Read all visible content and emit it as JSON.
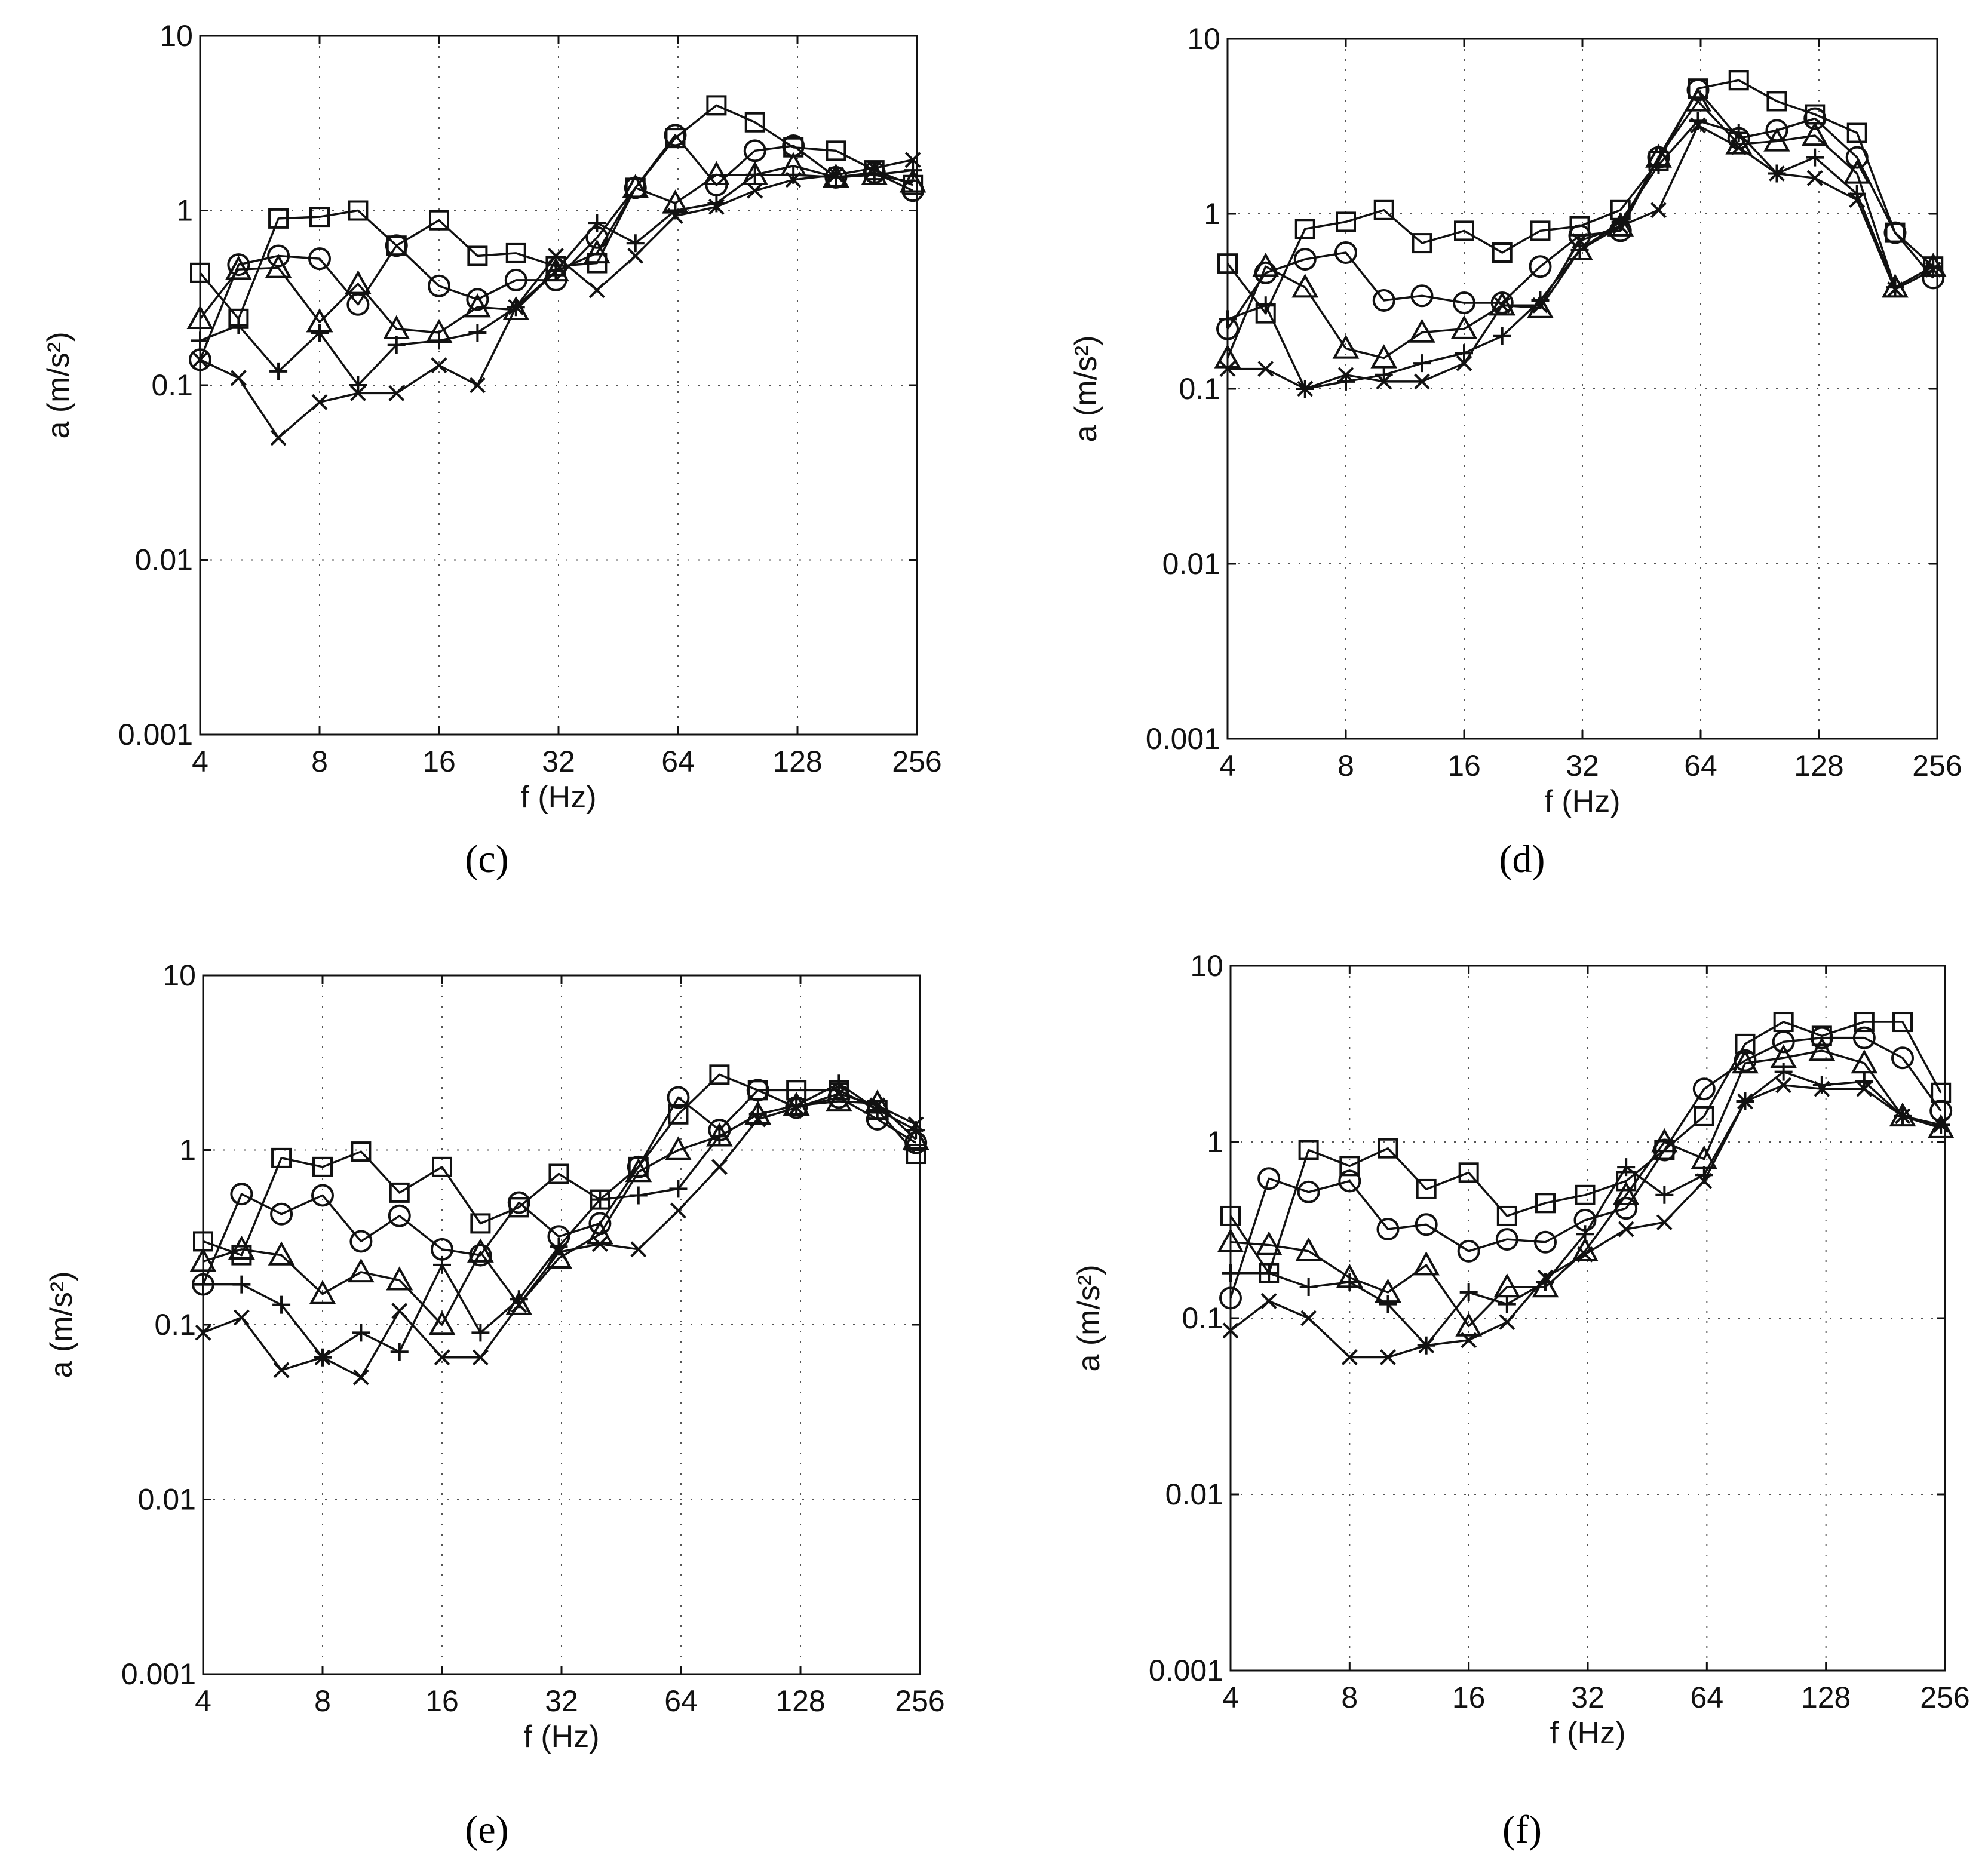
{
  "chart_data": [
    {
      "type": "line",
      "panel": "c",
      "panel_label": "(c)",
      "xlabel": "f (Hz)",
      "ylabel": "a (m/s²)",
      "xscale": "log2",
      "yscale": "log10",
      "xlim": [
        4,
        256
      ],
      "ylim": [
        0.001,
        10
      ],
      "x_ticks": [
        "4",
        "8",
        "16",
        "32",
        "64",
        "128",
        "256"
      ],
      "y_ticks": [
        "0.001",
        "0.01",
        "0.1",
        "1",
        "10"
      ],
      "grid": "dotted",
      "x": [
        4,
        5,
        6.3,
        8,
        10,
        12.5,
        16,
        20,
        25,
        31.5,
        40,
        50,
        63,
        80,
        100,
        125,
        160,
        200,
        250
      ],
      "series": [
        {
          "name": "square",
          "marker": "square",
          "values": [
            0.44,
            0.24,
            0.9,
            0.92,
            1.0,
            0.63,
            0.88,
            0.55,
            0.57,
            0.48,
            0.5,
            1.35,
            2.6,
            4.0,
            3.2,
            2.3,
            2.2,
            1.7,
            1.4
          ]
        },
        {
          "name": "circle",
          "marker": "circle",
          "values": [
            0.14,
            0.49,
            0.55,
            0.53,
            0.29,
            0.63,
            0.37,
            0.31,
            0.4,
            0.4,
            0.7,
            1.35,
            2.7,
            1.4,
            2.2,
            2.35,
            1.55,
            1.65,
            1.3
          ]
        },
        {
          "name": "triangle",
          "marker": "triangle",
          "values": [
            0.24,
            0.46,
            0.47,
            0.23,
            0.38,
            0.21,
            0.2,
            0.28,
            0.27,
            0.45,
            0.57,
            1.35,
            1.1,
            1.6,
            1.6,
            1.8,
            1.55,
            1.6,
            1.45
          ]
        },
        {
          "name": "plus",
          "marker": "plus",
          "values": [
            0.18,
            0.22,
            0.12,
            0.2,
            0.1,
            0.17,
            0.18,
            0.2,
            0.28,
            0.45,
            0.85,
            0.65,
            1.0,
            1.1,
            1.6,
            1.6,
            1.55,
            1.6,
            1.7
          ]
        },
        {
          "name": "cross",
          "marker": "cross",
          "values": [
            0.14,
            0.11,
            0.05,
            0.08,
            0.09,
            0.09,
            0.13,
            0.1,
            0.28,
            0.55,
            0.35,
            0.55,
            0.93,
            1.05,
            1.3,
            1.5,
            1.6,
            1.75,
            1.95
          ]
        }
      ]
    },
    {
      "type": "line",
      "panel": "d",
      "panel_label": "(d)",
      "xlabel": "f (Hz)",
      "ylabel": "a (m/s²)",
      "xscale": "log2",
      "yscale": "log10",
      "xlim": [
        4,
        256
      ],
      "ylim": [
        0.001,
        10
      ],
      "x_ticks": [
        "4",
        "8",
        "16",
        "32",
        "64",
        "128",
        "256"
      ],
      "y_ticks": [
        "0.001",
        "0.01",
        "0.1",
        "1",
        "10"
      ],
      "grid": "dotted",
      "x": [
        4,
        5,
        6.3,
        8,
        10,
        12.5,
        16,
        20,
        25,
        31.5,
        40,
        50,
        63,
        80,
        100,
        125,
        160,
        200,
        250
      ],
      "series": [
        {
          "name": "square",
          "marker": "square",
          "values": [
            0.52,
            0.27,
            0.82,
            0.9,
            1.05,
            0.68,
            0.8,
            0.6,
            0.8,
            0.85,
            1.05,
            2.0,
            5.2,
            5.8,
            4.4,
            3.7,
            2.9,
            0.78,
            0.5
          ]
        },
        {
          "name": "circle",
          "marker": "circle",
          "values": [
            0.22,
            0.46,
            0.55,
            0.6,
            0.32,
            0.34,
            0.31,
            0.31,
            0.5,
            0.75,
            0.8,
            2.1,
            5.1,
            2.7,
            3.0,
            3.5,
            2.1,
            0.78,
            0.43
          ]
        },
        {
          "name": "triangle",
          "marker": "triangle",
          "values": [
            0.15,
            0.5,
            0.38,
            0.17,
            0.15,
            0.21,
            0.22,
            0.3,
            0.29,
            0.62,
            0.85,
            2.1,
            4.4,
            2.5,
            2.6,
            2.8,
            1.7,
            0.38,
            0.5
          ]
        },
        {
          "name": "plus",
          "marker": "plus",
          "values": [
            0.25,
            0.3,
            0.1,
            0.11,
            0.12,
            0.14,
            0.16,
            0.2,
            0.32,
            0.62,
            0.9,
            1.9,
            3.4,
            2.9,
            1.7,
            2.1,
            1.3,
            0.38,
            0.5
          ]
        },
        {
          "name": "cross",
          "marker": "cross",
          "values": [
            0.13,
            0.13,
            0.1,
            0.12,
            0.11,
            0.11,
            0.14,
            0.3,
            0.3,
            0.7,
            0.85,
            1.05,
            3.2,
            2.4,
            1.7,
            1.6,
            1.2,
            0.37,
            0.48
          ]
        }
      ]
    },
    {
      "type": "line",
      "panel": "e",
      "panel_label": "(e)",
      "xlabel": "f (Hz)",
      "ylabel": "a (m/s²)",
      "xscale": "log2",
      "yscale": "log10",
      "xlim": [
        4,
        256
      ],
      "ylim": [
        0.001,
        10
      ],
      "x_ticks": [
        "4",
        "8",
        "16",
        "32",
        "64",
        "128",
        "256"
      ],
      "y_ticks": [
        "0.001",
        "0.01",
        "0.1",
        "1",
        "10"
      ],
      "grid": "dotted",
      "x": [
        4,
        5,
        6.3,
        8,
        10,
        12.5,
        16,
        20,
        25,
        31.5,
        40,
        50,
        63,
        80,
        100,
        125,
        160,
        200,
        250
      ],
      "series": [
        {
          "name": "square",
          "marker": "square",
          "values": [
            0.3,
            0.25,
            0.9,
            0.8,
            0.98,
            0.57,
            0.8,
            0.38,
            0.47,
            0.73,
            0.52,
            0.8,
            1.6,
            2.7,
            2.2,
            2.2,
            2.2,
            1.7,
            0.95
          ]
        },
        {
          "name": "circle",
          "marker": "circle",
          "values": [
            0.17,
            0.56,
            0.43,
            0.55,
            0.3,
            0.42,
            0.27,
            0.25,
            0.5,
            0.32,
            0.38,
            0.8,
            2.0,
            1.3,
            2.2,
            1.75,
            2.0,
            1.5,
            1.1
          ]
        },
        {
          "name": "triangle",
          "marker": "triangle",
          "values": [
            0.23,
            0.27,
            0.25,
            0.15,
            0.2,
            0.18,
            0.1,
            0.26,
            0.13,
            0.24,
            0.33,
            0.75,
            1.0,
            1.2,
            1.6,
            1.8,
            1.9,
            1.85,
            1.15
          ]
        },
        {
          "name": "plus",
          "marker": "plus",
          "values": [
            0.17,
            0.17,
            0.13,
            0.065,
            0.09,
            0.07,
            0.22,
            0.09,
            0.14,
            0.28,
            0.52,
            0.55,
            0.6,
            1.2,
            1.6,
            1.8,
            2.4,
            1.7,
            1.3
          ]
        },
        {
          "name": "cross",
          "marker": "cross",
          "values": [
            0.09,
            0.11,
            0.055,
            0.065,
            0.05,
            0.12,
            0.065,
            0.065,
            0.13,
            0.26,
            0.29,
            0.27,
            0.45,
            0.8,
            1.5,
            1.75,
            2.1,
            1.8,
            1.4
          ]
        }
      ]
    },
    {
      "type": "line",
      "panel": "f",
      "panel_label": "(f)",
      "xlabel": "f (Hz)",
      "ylabel": "a (m/s²)",
      "xscale": "log2",
      "yscale": "log10",
      "xlim": [
        4,
        256
      ],
      "ylim": [
        0.001,
        10
      ],
      "x_ticks": [
        "4",
        "8",
        "16",
        "32",
        "64",
        "128",
        "256"
      ],
      "y_ticks": [
        "0.001",
        "0.01",
        "0.1",
        "1",
        "10"
      ],
      "grid": "dotted",
      "x": [
        4,
        5,
        6.3,
        8,
        10,
        12.5,
        16,
        20,
        25,
        31.5,
        40,
        50,
        63,
        80,
        100,
        125,
        160,
        200,
        250
      ],
      "series": [
        {
          "name": "square",
          "marker": "square",
          "values": [
            0.38,
            0.18,
            0.9,
            0.73,
            0.92,
            0.54,
            0.67,
            0.38,
            0.45,
            0.5,
            0.6,
            0.9,
            1.4,
            3.6,
            4.8,
            4.0,
            4.8,
            4.8,
            1.9
          ]
        },
        {
          "name": "circle",
          "marker": "circle",
          "values": [
            0.13,
            0.62,
            0.52,
            0.6,
            0.32,
            0.34,
            0.24,
            0.28,
            0.27,
            0.36,
            0.42,
            0.9,
            2.0,
            2.9,
            3.7,
            3.9,
            3.9,
            3.0,
            1.5
          ]
        },
        {
          "name": "triangle",
          "marker": "triangle",
          "values": [
            0.27,
            0.26,
            0.24,
            0.17,
            0.14,
            0.2,
            0.09,
            0.15,
            0.15,
            0.24,
            0.5,
            1.0,
            0.8,
            2.8,
            3.0,
            3.3,
            2.8,
            1.4,
            1.2
          ]
        },
        {
          "name": "plus",
          "marker": "plus",
          "values": [
            0.18,
            0.18,
            0.15,
            0.16,
            0.12,
            0.07,
            0.14,
            0.12,
            0.16,
            0.3,
            0.72,
            0.5,
            0.65,
            1.7,
            2.5,
            2.1,
            2.2,
            1.4,
            1.25
          ]
        },
        {
          "name": "cross",
          "marker": "cross",
          "values": [
            0.085,
            0.125,
            0.1,
            0.06,
            0.06,
            0.07,
            0.075,
            0.095,
            0.17,
            0.23,
            0.32,
            0.35,
            0.6,
            1.7,
            2.1,
            2.0,
            2.0,
            1.4,
            1.25
          ]
        }
      ]
    }
  ]
}
